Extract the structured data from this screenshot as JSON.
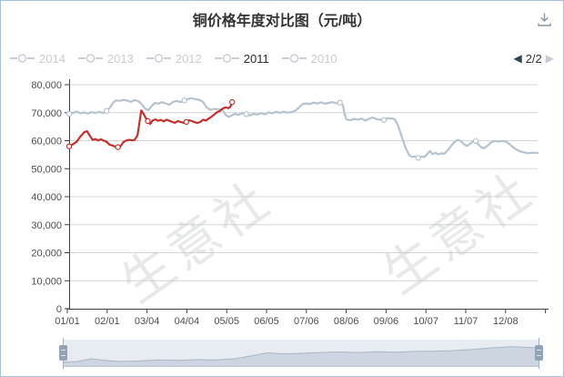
{
  "header": {
    "title": "铜价格年度对比图（元/吨）",
    "download_icon": "download-icon"
  },
  "legend": {
    "items": [
      {
        "label": "2014",
        "active": false
      },
      {
        "label": "2013",
        "active": false
      },
      {
        "label": "2012",
        "active": false
      },
      {
        "label": "2011",
        "active": true
      },
      {
        "label": "2010",
        "active": false
      }
    ]
  },
  "pagination": {
    "prev_icon": "◀",
    "label": "2/2",
    "next_icon": "▶"
  },
  "watermark": {
    "text": "生意社"
  },
  "colors": {
    "border": "#a6c1dd",
    "selected_series": "#c5302c",
    "comparison_series": "#b6c3ce",
    "gridline": "#d5d5d5",
    "axis": "#404040",
    "axis_text": "#4d4d4d",
    "nav_fill": "#ccd5e0",
    "nav_stroke": "#aab6c4"
  },
  "chart_data": {
    "type": "line",
    "title": "铜价格年度对比图（元/吨）",
    "xlabel": "",
    "ylabel": "元/吨",
    "ylim": [
      0,
      80000
    ],
    "grid": true,
    "legend_position": "top",
    "y_tick_values": [
      0,
      10000,
      20000,
      30000,
      40000,
      50000,
      60000,
      70000,
      80000
    ],
    "y_tick_labels": [
      "0",
      "10,000",
      "20,000",
      "30,000",
      "40,000",
      "50,000",
      "60,000",
      "70,000",
      "80,000"
    ],
    "x_labels": [
      "01/01",
      "02/01",
      "03/04",
      "04/04",
      "05/05",
      "06/05",
      "07/06",
      "08/06",
      "09/06",
      "10/07",
      "11/07",
      "12/08"
    ],
    "series": [
      {
        "name": "unlabeled-comparison-line",
        "color": "#b6c3ce",
        "points": [
          [
            0.0,
            69600
          ],
          [
            0.008,
            69900
          ],
          [
            0.016,
            70400
          ],
          [
            0.024,
            69800
          ],
          [
            0.032,
            70100
          ],
          [
            0.04,
            69700
          ],
          [
            0.048,
            70200
          ],
          [
            0.056,
            69900
          ],
          [
            0.064,
            70300
          ],
          [
            0.072,
            69900
          ],
          [
            0.08,
            70600
          ],
          [
            0.088,
            72000
          ],
          [
            0.094,
            73600
          ],
          [
            0.1,
            74400
          ],
          [
            0.108,
            74200
          ],
          [
            0.116,
            74600
          ],
          [
            0.124,
            74300
          ],
          [
            0.132,
            73900
          ],
          [
            0.14,
            74500
          ],
          [
            0.148,
            74100
          ],
          [
            0.155,
            73000
          ],
          [
            0.162,
            71500
          ],
          [
            0.169,
            70900
          ],
          [
            0.176,
            72300
          ],
          [
            0.183,
            73500
          ],
          [
            0.19,
            73200
          ],
          [
            0.198,
            73800
          ],
          [
            0.206,
            73300
          ],
          [
            0.214,
            72800
          ],
          [
            0.222,
            73900
          ],
          [
            0.23,
            74200
          ],
          [
            0.238,
            73800
          ],
          [
            0.246,
            74400
          ],
          [
            0.254,
            74900
          ],
          [
            0.262,
            75200
          ],
          [
            0.27,
            74800
          ],
          [
            0.278,
            74600
          ],
          [
            0.286,
            73800
          ],
          [
            0.294,
            71800
          ],
          [
            0.302,
            71000
          ],
          [
            0.31,
            71400
          ],
          [
            0.318,
            71200
          ],
          [
            0.326,
            71300
          ],
          [
            0.334,
            69200
          ],
          [
            0.34,
            68500
          ],
          [
            0.346,
            68900
          ],
          [
            0.354,
            69600
          ],
          [
            0.362,
            69200
          ],
          [
            0.37,
            69900
          ],
          [
            0.378,
            69500
          ],
          [
            0.386,
            69000
          ],
          [
            0.394,
            69600
          ],
          [
            0.402,
            69300
          ],
          [
            0.41,
            69800
          ],
          [
            0.418,
            69400
          ],
          [
            0.426,
            70100
          ],
          [
            0.434,
            69800
          ],
          [
            0.442,
            70300
          ],
          [
            0.45,
            69900
          ],
          [
            0.458,
            70400
          ],
          [
            0.466,
            70000
          ],
          [
            0.474,
            70200
          ],
          [
            0.482,
            70600
          ],
          [
            0.49,
            71800
          ],
          [
            0.498,
            73000
          ],
          [
            0.506,
            73300
          ],
          [
            0.514,
            73100
          ],
          [
            0.522,
            73600
          ],
          [
            0.53,
            73300
          ],
          [
            0.538,
            73700
          ],
          [
            0.546,
            73200
          ],
          [
            0.554,
            73500
          ],
          [
            0.562,
            73800
          ],
          [
            0.57,
            73400
          ],
          [
            0.578,
            73600
          ],
          [
            0.584,
            72800
          ],
          [
            0.588,
            69500
          ],
          [
            0.592,
            67600
          ],
          [
            0.6,
            67300
          ],
          [
            0.608,
            67800
          ],
          [
            0.616,
            67500
          ],
          [
            0.624,
            67900
          ],
          [
            0.632,
            67200
          ],
          [
            0.64,
            67800
          ],
          [
            0.648,
            68300
          ],
          [
            0.656,
            67700
          ],
          [
            0.664,
            67500
          ],
          [
            0.672,
            67400
          ],
          [
            0.68,
            68000
          ],
          [
            0.688,
            67900
          ],
          [
            0.695,
            67700
          ],
          [
            0.702,
            65500
          ],
          [
            0.71,
            61500
          ],
          [
            0.718,
            57500
          ],
          [
            0.726,
            54800
          ],
          [
            0.732,
            54200
          ],
          [
            0.739,
            54400
          ],
          [
            0.745,
            53900
          ],
          [
            0.752,
            54300
          ],
          [
            0.758,
            54100
          ],
          [
            0.764,
            55200
          ],
          [
            0.77,
            56300
          ],
          [
            0.776,
            55200
          ],
          [
            0.782,
            55700
          ],
          [
            0.788,
            55100
          ],
          [
            0.794,
            55500
          ],
          [
            0.8,
            55300
          ],
          [
            0.808,
            56500
          ],
          [
            0.816,
            58300
          ],
          [
            0.824,
            59800
          ],
          [
            0.83,
            60300
          ],
          [
            0.836,
            59900
          ],
          [
            0.842,
            58900
          ],
          [
            0.849,
            58100
          ],
          [
            0.856,
            58900
          ],
          [
            0.862,
            59600
          ],
          [
            0.868,
            59900
          ],
          [
            0.874,
            58600
          ],
          [
            0.88,
            57600
          ],
          [
            0.886,
            57300
          ],
          [
            0.893,
            58200
          ],
          [
            0.9,
            59300
          ],
          [
            0.908,
            59900
          ],
          [
            0.916,
            59700
          ],
          [
            0.924,
            59900
          ],
          [
            0.932,
            59700
          ],
          [
            0.94,
            58800
          ],
          [
            0.948,
            57600
          ],
          [
            0.956,
            56700
          ],
          [
            0.964,
            56100
          ],
          [
            0.972,
            55800
          ],
          [
            0.98,
            55500
          ],
          [
            0.988,
            55700
          ],
          [
            1.0,
            55600
          ]
        ],
        "markers": [
          [
            0.0,
            69600
          ],
          [
            0.08,
            70600
          ],
          [
            0.246,
            74400
          ],
          [
            0.378,
            69500
          ],
          [
            0.578,
            73600
          ],
          [
            0.672,
            67400
          ],
          [
            0.745,
            53900
          ],
          [
            0.868,
            59900
          ]
        ]
      },
      {
        "name": "2011",
        "color": "#c5302c",
        "points": [
          [
            0.0,
            58000
          ],
          [
            0.008,
            58700
          ],
          [
            0.016,
            59600
          ],
          [
            0.024,
            61500
          ],
          [
            0.032,
            63000
          ],
          [
            0.038,
            63400
          ],
          [
            0.044,
            61800
          ],
          [
            0.05,
            60300
          ],
          [
            0.056,
            60600
          ],
          [
            0.062,
            60100
          ],
          [
            0.068,
            60500
          ],
          [
            0.074,
            60000
          ],
          [
            0.08,
            59600
          ],
          [
            0.086,
            58600
          ],
          [
            0.092,
            58300
          ],
          [
            0.098,
            57900
          ],
          [
            0.104,
            57700
          ],
          [
            0.11,
            58100
          ],
          [
            0.116,
            59500
          ],
          [
            0.122,
            60100
          ],
          [
            0.128,
            60300
          ],
          [
            0.134,
            60100
          ],
          [
            0.14,
            60300
          ],
          [
            0.146,
            62000
          ],
          [
            0.15,
            66500
          ],
          [
            0.154,
            70800
          ],
          [
            0.158,
            69800
          ],
          [
            0.163,
            68300
          ],
          [
            0.168,
            67000
          ],
          [
            0.173,
            66000
          ],
          [
            0.178,
            67200
          ],
          [
            0.184,
            67600
          ],
          [
            0.19,
            67100
          ],
          [
            0.196,
            67400
          ],
          [
            0.202,
            66900
          ],
          [
            0.208,
            67500
          ],
          [
            0.214,
            67100
          ],
          [
            0.22,
            66700
          ],
          [
            0.226,
            66400
          ],
          [
            0.232,
            67000
          ],
          [
            0.238,
            66700
          ],
          [
            0.244,
            66400
          ],
          [
            0.25,
            66700
          ],
          [
            0.256,
            67300
          ],
          [
            0.262,
            67000
          ],
          [
            0.268,
            66600
          ],
          [
            0.274,
            66300
          ],
          [
            0.28,
            66700
          ],
          [
            0.286,
            67500
          ],
          [
            0.292,
            67200
          ],
          [
            0.298,
            67900
          ],
          [
            0.304,
            68600
          ],
          [
            0.31,
            69400
          ],
          [
            0.316,
            70200
          ],
          [
            0.322,
            70600
          ],
          [
            0.328,
            71500
          ],
          [
            0.334,
            71900
          ],
          [
            0.34,
            71600
          ],
          [
            0.344,
            72100
          ],
          [
            0.348,
            73800
          ]
        ],
        "markers": [
          [
            0.0,
            58000
          ],
          [
            0.104,
            57700
          ],
          [
            0.168,
            67000
          ],
          [
            0.25,
            66700
          ],
          [
            0.348,
            73800
          ]
        ]
      }
    ]
  },
  "navigator": {
    "area_points": [
      [
        0,
        0.18
      ],
      [
        0.03,
        0.2
      ],
      [
        0.06,
        0.3
      ],
      [
        0.09,
        0.24
      ],
      [
        0.12,
        0.2
      ],
      [
        0.16,
        0.22
      ],
      [
        0.2,
        0.26
      ],
      [
        0.24,
        0.24
      ],
      [
        0.28,
        0.27
      ],
      [
        0.32,
        0.26
      ],
      [
        0.36,
        0.3
      ],
      [
        0.4,
        0.42
      ],
      [
        0.43,
        0.52
      ],
      [
        0.46,
        0.48
      ],
      [
        0.5,
        0.5
      ],
      [
        0.54,
        0.53
      ],
      [
        0.58,
        0.55
      ],
      [
        0.62,
        0.53
      ],
      [
        0.66,
        0.56
      ],
      [
        0.7,
        0.54
      ],
      [
        0.74,
        0.57
      ],
      [
        0.78,
        0.58
      ],
      [
        0.82,
        0.6
      ],
      [
        0.86,
        0.64
      ],
      [
        0.9,
        0.7
      ],
      [
        0.94,
        0.74
      ],
      [
        0.97,
        0.72
      ],
      [
        1.0,
        0.7
      ]
    ]
  }
}
